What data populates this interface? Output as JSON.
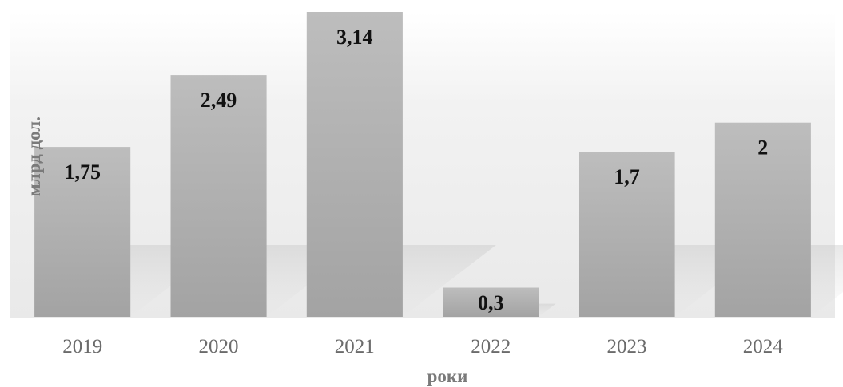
{
  "chart_data": {
    "type": "bar",
    "title": "",
    "xlabel": "роки",
    "ylabel": "млрд дол.",
    "categories": [
      "2019",
      "2020",
      "2021",
      "2022",
      "2023",
      "2024"
    ],
    "value_labels": [
      "1,75",
      "2,49",
      "3,14",
      "0,3",
      "1,7",
      "2"
    ],
    "values": [
      1.75,
      2.49,
      3.14,
      0.3,
      1.7,
      2.0
    ],
    "ylim": [
      0,
      3.14
    ],
    "grid": false,
    "legend": "none",
    "colors": {
      "bar_top": "#bdbdbd",
      "bar_bottom": "#a3a3a3",
      "value_label": "#111111",
      "tick_label": "#6b6b6b",
      "axis_title": "#7a7a7a"
    }
  }
}
